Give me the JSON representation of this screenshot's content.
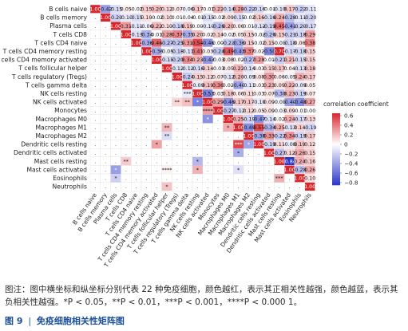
{
  "caption": "图注：图中横坐标和纵坐标分别代表 22 种免疫细胞，颜色越红，表示其正相关性越强，颜色越蓝，表示其负相关性越强。*P < 0.05，**P < 0.01，***P < 0.001，****P < 0.000 1。",
  "figure_label": "图 9",
  "figure_sep": "|",
  "figure_title": "免疫细胞相关性矩阵图",
  "colors": {
    "neg": "#2b36c8",
    "mid": "#ffffff",
    "pos": "#d8262d",
    "grid": "#d9d9d9"
  },
  "chart_data": {
    "type": "heatmap",
    "title": "",
    "legend_title": "correlation coefficient",
    "legend_ticks": [
      "0.6",
      "0.4",
      "0.2",
      "0",
      "−0.2",
      "−0.4",
      "−0.6",
      "−0.8"
    ],
    "legend_range": [
      -0.85,
      0.65
    ],
    "cells": [
      "B cells naive",
      "B cells memory",
      "Plasma cells",
      "T cells CD8",
      "T cells CD4 naive",
      "T cells CD4 memory resting",
      "T cells CD4 memory activated",
      "T cells follicular helper",
      "T cells regulatory (Tregs)",
      "T cells gamma delta",
      "NK cells resting",
      "NK cells activated",
      "Monocytes",
      "Macrophages M0",
      "Macrophages M1",
      "Macrophages M2",
      "Dendritic cells resting",
      "Dendritic cells activated",
      "Mast cells resting",
      "Mast cells activated",
      "Eosinophils",
      "Neutrophils"
    ],
    "matrix": [
      [
        1.0,
        -0.42,
        -0.15,
        0.05,
        -0.02,
        0.15,
        0.2,
        0.12,
        0.07,
        -0.06,
        0.17,
        -0.01,
        0.22,
        -0.14,
        0.28,
        -0.22,
        -0.16,
        -0.01,
        -0.1,
        0.17,
        -0.22,
        -0.11
      ],
      [
        -0.42,
        1.0,
        -0.2,
        -0.1,
        -0.15,
        0.1,
        -0.02,
        0.1,
        0.01,
        -0.04,
        -0.01,
        -0.15,
        -0.02,
        0.09,
        -0.15,
        -0.02,
        0.16,
        -0.16,
        0.24,
        -0.28,
        -0.11,
        -0.2
      ],
      [
        -0.15,
        -0.2,
        1.0,
        0.31,
        -0.11,
        -0.06,
        0.22,
        0.1,
        -0.18,
        0.19,
        0.0,
        -0.1,
        -0.26,
        0.2,
        0.06,
        0.01,
        -0.12,
        -0.19,
        0.45,
        -0.41,
        -0.2,
        -0.17
      ],
      [
        0.05,
        -0.1,
        0.31,
        1.0,
        -0.13,
        -0.34,
        0.01,
        0.28,
        0.37,
        -0.35,
        0.2,
        0.02,
        0.14,
        -0.02,
        0.05,
        0.15,
        -0.02,
        -0.26,
        0.15,
        -0.21,
        -0.18,
        0.29
      ],
      [
        -0.02,
        -0.15,
        -0.11,
        -0.13,
        1.0,
        -0.36,
        0.46,
        -0.27,
        -0.25,
        0.31,
        0.54,
        -0.46,
        0.0,
        -0.23,
        -0.36,
        0.15,
        -0.02,
        0.15,
        -0.05,
        -0.18,
        0.06,
        0.38
      ],
      [
        0.15,
        0.1,
        -0.06,
        -0.34,
        -0.36,
        1.0,
        -0.36,
        -0.05,
        -0.18,
        -0.11,
        0.41,
        0.03,
        -0.24,
        0.49,
        -0.43,
        0.37,
        0.02,
        -0.5,
        0.7,
        -0.17,
        -0.18,
        0.15
      ],
      [
        0.2,
        -0.02,
        0.22,
        0.01,
        0.46,
        -0.36,
        1.0,
        -0.15,
        -0.2,
        0.34,
        0.23,
        -0.43,
        -0.03,
        0.08,
        0.02,
        -0.27,
        0.28,
        0.01,
        -0.21,
        0.21,
        -0.15,
        0.15
      ],
      [
        0.12,
        0.1,
        0.1,
        0.28,
        -0.27,
        -0.05,
        -0.15,
        1.0,
        -0.12,
        -0.12,
        -0.16,
        0.14,
        -0.03,
        0.05,
        0.22,
        -0.14,
        0.03,
        0.15,
        0.17,
        0.04,
        -0.13,
        0.18
      ],
      [
        0.07,
        0.01,
        -0.18,
        0.37,
        -0.25,
        -0.18,
        -0.2,
        -0.12,
        1.0,
        -0.24,
        0.15,
        0.12,
        0.07,
        -0.12,
        0.2,
        -0.09,
        0.08,
        0.3,
        0.06,
        -0.05,
        0.24,
        0.17
      ],
      [
        -0.06,
        -0.04,
        0.19,
        -0.35,
        0.31,
        -0.11,
        0.34,
        -0.12,
        -0.24,
        1.0,
        -0.09,
        0.19,
        0.36,
        0.02,
        -0.4,
        -0.11,
        0.03,
        0.23,
        0.09,
        0.22,
        -0.09,
        0.05
      ],
      [
        0.17,
        -0.01,
        0.0,
        0.2,
        0.54,
        0.41,
        0.23,
        -0.16,
        0.15,
        -0.09,
        1.0,
        -0.53,
        0.03,
        0.18,
        0.06,
        0.11,
        0.03,
        0.07,
        -0.3,
        0.23,
        -0.19,
        0.07
      ],
      [
        -0.01,
        -0.15,
        -0.1,
        0.02,
        -0.46,
        0.03,
        -0.43,
        0.14,
        0.12,
        0.19,
        -0.53,
        1.0,
        0.29,
        -0.46,
        0.17,
        0.17,
        -0.1,
        0.09,
        -0.05,
        -0.4,
        -0.48,
        0.27
      ],
      [
        0.22,
        -0.02,
        -0.26,
        0.14,
        0.0,
        -0.24,
        -0.03,
        -0.03,
        0.07,
        0.36,
        0.03,
        0.29,
        1.0,
        -0.27,
        -0.12,
        0.12,
        0.05,
        0.09,
        -0.03,
        0.09,
        -0.01,
        0.0
      ],
      [
        -0.14,
        0.09,
        0.2,
        -0.02,
        -0.23,
        0.49,
        0.08,
        0.05,
        -0.12,
        0.02,
        0.18,
        -0.46,
        -0.27,
        1.0,
        0.25,
        -0.19,
        -0.47,
        -0.14,
        0.02,
        0.24,
        -0.17,
        0.13
      ],
      [
        0.28,
        -0.15,
        0.06,
        0.05,
        -0.36,
        -0.43,
        0.02,
        0.22,
        0.2,
        -0.4,
        0.06,
        0.17,
        -0.12,
        0.25,
        1.0,
        -0.49,
        0.55,
        -0.34,
        0.25,
        -0.13,
        0.14,
        -0.19
      ],
      [
        -0.22,
        -0.02,
        0.01,
        0.15,
        0.15,
        0.37,
        -0.27,
        -0.14,
        -0.09,
        -0.11,
        0.11,
        0.17,
        0.12,
        -0.19,
        -0.49,
        1.0,
        -0.38,
        0.33,
        -0.22,
        0.34,
        -0.19,
        0.17
      ],
      [
        -0.16,
        0.16,
        -0.12,
        -0.02,
        -0.02,
        0.02,
        0.28,
        0.03,
        0.08,
        0.03,
        0.03,
        -0.1,
        0.05,
        -0.47,
        0.55,
        -0.38,
        1.0,
        -0.19,
        0.11,
        -0.08,
        0.19,
        0.12
      ],
      [
        -0.01,
        -0.16,
        -0.19,
        -0.26,
        0.15,
        -0.5,
        0.01,
        0.15,
        0.3,
        0.23,
        0.07,
        0.09,
        0.09,
        -0.14,
        -0.34,
        0.33,
        -0.19,
        1.0,
        -0.27,
        0.12,
        0.26,
        0.15
      ],
      [
        -0.1,
        0.24,
        0.45,
        0.15,
        -0.05,
        0.7,
        -0.21,
        0.17,
        0.06,
        0.09,
        -0.3,
        -0.05,
        -0.03,
        0.02,
        0.25,
        -0.22,
        0.11,
        -0.27,
        1.0,
        -0.84,
        0.24,
        0.16
      ],
      [
        0.17,
        -0.28,
        -0.41,
        -0.21,
        -0.18,
        -0.17,
        0.21,
        0.04,
        -0.05,
        0.22,
        0.23,
        -0.4,
        0.09,
        0.24,
        -0.13,
        0.34,
        -0.08,
        0.12,
        -0.84,
        1.0,
        -0.28,
        0.26
      ],
      [
        -0.22,
        -0.11,
        -0.2,
        -0.18,
        0.06,
        -0.18,
        -0.15,
        -0.13,
        0.24,
        -0.09,
        -0.19,
        -0.48,
        -0.01,
        -0.17,
        0.14,
        -0.19,
        0.19,
        0.26,
        0.24,
        -0.28,
        1.0,
        0.1
      ],
      [
        -0.11,
        -0.2,
        -0.17,
        0.29,
        0.38,
        0.15,
        0.15,
        0.18,
        0.17,
        0.05,
        0.07,
        0.27,
        0.0,
        0.13,
        -0.19,
        0.17,
        0.12,
        0.15,
        0.16,
        0.26,
        0.1,
        1.0
      ]
    ],
    "significance": [
      [
        0,
        7,
        "**"
      ],
      [
        1,
        5,
        "*"
      ],
      [
        2,
        4,
        "*"
      ],
      [
        3,
        6,
        "*"
      ],
      [
        4,
        8,
        "*"
      ],
      [
        4,
        10,
        "*"
      ],
      [
        5,
        6,
        "**"
      ],
      [
        5,
        10,
        "*"
      ],
      [
        6,
        11,
        "*"
      ],
      [
        9,
        9,
        "*"
      ],
      [
        10,
        9,
        "***"
      ],
      [
        10,
        10,
        "*"
      ],
      [
        11,
        8,
        "**"
      ],
      [
        11,
        9,
        "**"
      ],
      [
        11,
        10,
        "*"
      ],
      [
        11,
        11,
        "*"
      ],
      [
        12,
        11,
        "****"
      ],
      [
        13,
        11,
        "*"
      ],
      [
        14,
        7,
        "**"
      ],
      [
        14,
        13,
        "*"
      ],
      [
        15,
        7,
        "**"
      ],
      [
        16,
        6,
        "*"
      ],
      [
        16,
        14,
        "***"
      ],
      [
        16,
        15,
        "*"
      ],
      [
        17,
        14,
        "*"
      ],
      [
        18,
        3,
        "**"
      ],
      [
        18,
        10,
        "*"
      ],
      [
        19,
        2,
        "*"
      ],
      [
        19,
        7,
        "****"
      ],
      [
        19,
        10,
        "*"
      ],
      [
        19,
        14,
        "*"
      ],
      [
        20,
        2,
        "*"
      ],
      [
        20,
        18,
        "***"
      ],
      [
        21,
        7,
        "*"
      ]
    ]
  }
}
